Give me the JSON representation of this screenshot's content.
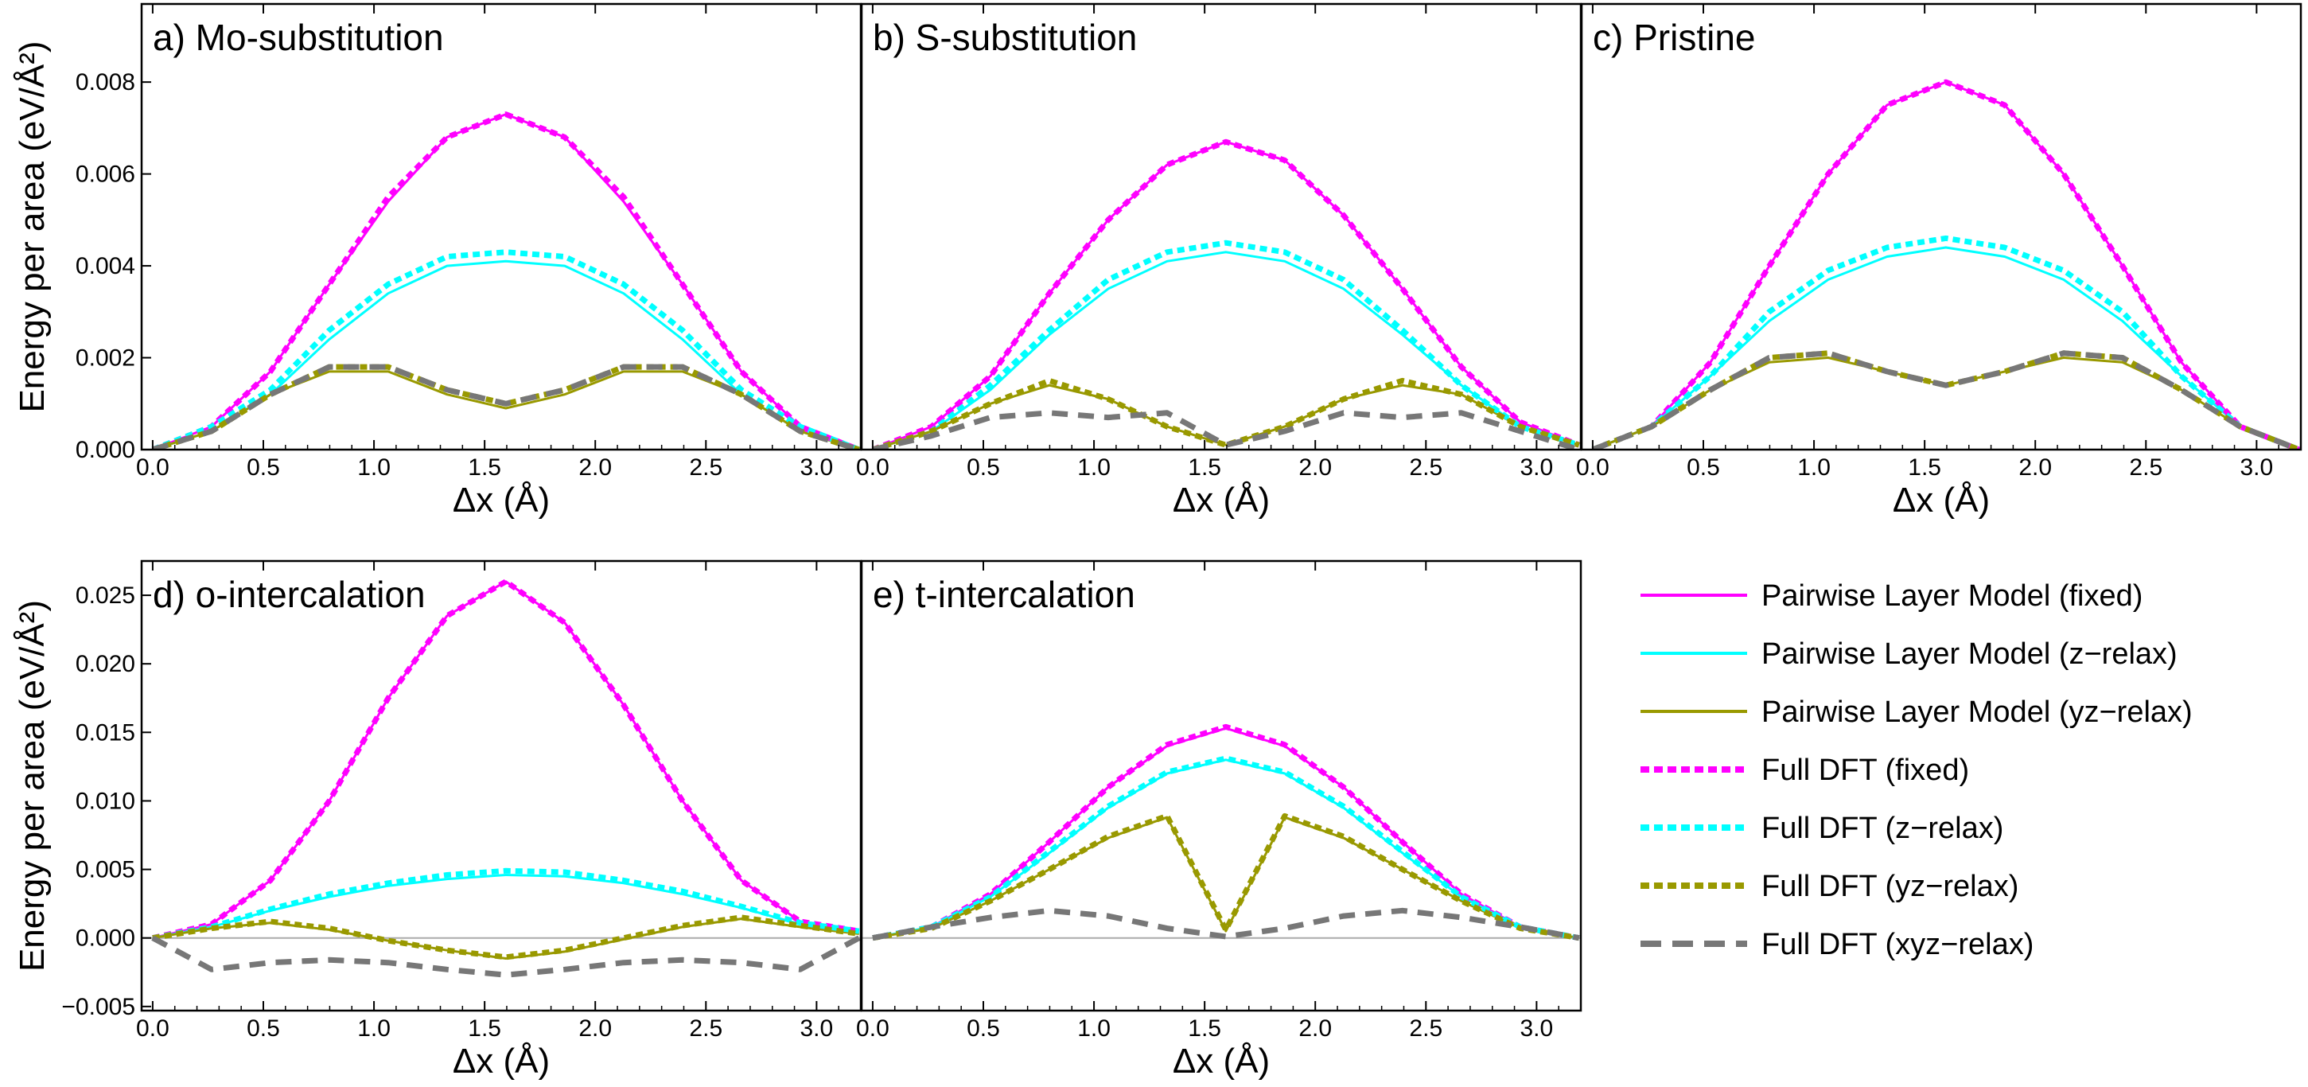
{
  "colors": {
    "fixed": "#ff00ff",
    "z_relax": "#00ffff",
    "yz_relax": "#999900",
    "xyz_relax": "#777777",
    "zero_line": "#aaaaaa",
    "frame": "#000000"
  },
  "legend": {
    "items": [
      {
        "label": "Pairwise Layer Model (fixed)",
        "color": "#ff00ff",
        "style": "solid"
      },
      {
        "label": "Pairwise Layer Model (z−relax)",
        "color": "#00ffff",
        "style": "solid"
      },
      {
        "label": "Pairwise Layer Model (yz−relax)",
        "color": "#999900",
        "style": "solid"
      },
      {
        "label": "Full DFT (fixed)",
        "color": "#ff00ff",
        "style": "dotted"
      },
      {
        "label": "Full DFT (z−relax)",
        "color": "#00ffff",
        "style": "dotted"
      },
      {
        "label": "Full DFT (yz−relax)",
        "color": "#999900",
        "style": "dotted"
      },
      {
        "label": "Full DFT (xyz−relax)",
        "color": "#777777",
        "style": "dashed"
      }
    ]
  },
  "chart_data": [
    {
      "panel": "a",
      "type": "line",
      "title": "a) Mo-substitution",
      "xlabel": "Δx (Å)",
      "ylabel": "Energy per area (eV/Å²)",
      "xlim": [
        -0.05,
        3.2
      ],
      "ylim": [
        0.0,
        0.0097
      ],
      "xticks": [
        0.0,
        0.5,
        1.0,
        1.5,
        2.0,
        2.5,
        3.0
      ],
      "xtick_labels": [
        "0.0",
        "0.5",
        "1.0",
        "1.5",
        "2.0",
        "2.5",
        "3.0"
      ],
      "yticks": [
        0.0,
        0.002,
        0.004,
        0.006,
        0.008
      ],
      "ytick_labels": [
        "0.000",
        "0.002",
        "0.004",
        "0.006",
        "0.008"
      ],
      "zero_line": false,
      "x": [
        0.0,
        0.266,
        0.532,
        0.798,
        1.064,
        1.33,
        1.596,
        1.862,
        2.128,
        2.394,
        2.66,
        2.926,
        3.192
      ],
      "series": [
        {
          "name": "Pairwise Layer Model (fixed)",
          "key": "fixed",
          "style": "solid",
          "values": [
            0.0,
            0.0005,
            0.0017,
            0.0036,
            0.0054,
            0.0068,
            0.0073,
            0.0068,
            0.0054,
            0.0036,
            0.0017,
            0.0005,
            0.0
          ]
        },
        {
          "name": "Pairwise Layer Model (z-relax)",
          "key": "z_relax",
          "style": "solid",
          "values": [
            0.0,
            0.0004,
            0.0012,
            0.0024,
            0.0034,
            0.004,
            0.0041,
            0.004,
            0.0034,
            0.0024,
            0.0012,
            0.0004,
            0.0
          ]
        },
        {
          "name": "Pairwise Layer Model (yz-relax)",
          "key": "yz_relax",
          "style": "solid",
          "values": [
            0.0,
            0.0004,
            0.0012,
            0.0017,
            0.0017,
            0.0012,
            0.0009,
            0.0012,
            0.0017,
            0.0017,
            0.0012,
            0.0004,
            0.0
          ]
        },
        {
          "name": "Full DFT (fixed)",
          "key": "fixed",
          "style": "dotted",
          "values": [
            0.0,
            0.0005,
            0.0017,
            0.0036,
            0.0055,
            0.0068,
            0.0073,
            0.0068,
            0.0055,
            0.0036,
            0.0017,
            0.0005,
            0.0
          ]
        },
        {
          "name": "Full DFT (z-relax)",
          "key": "z_relax",
          "style": "dotted",
          "values": [
            0.0,
            0.0005,
            0.0013,
            0.0026,
            0.0036,
            0.0042,
            0.0043,
            0.0042,
            0.0036,
            0.0026,
            0.0013,
            0.0005,
            0.0
          ]
        },
        {
          "name": "Full DFT (yz-relax)",
          "key": "yz_relax",
          "style": "dotted",
          "values": [
            0.0,
            0.0004,
            0.0012,
            0.0018,
            0.0018,
            0.0013,
            0.001,
            0.0013,
            0.0018,
            0.0018,
            0.0012,
            0.0004,
            0.0
          ]
        },
        {
          "name": "Full DFT (xyz-relax)",
          "key": "xyz_relax",
          "style": "dashed",
          "values": [
            0.0,
            0.0004,
            0.0012,
            0.0018,
            0.0018,
            0.0013,
            0.001,
            0.0013,
            0.0018,
            0.0018,
            0.0012,
            0.0004,
            0.0
          ]
        }
      ]
    },
    {
      "panel": "b",
      "type": "line",
      "title": "b) S-substitution",
      "xlabel": "Δx (Å)",
      "ylabel": "",
      "xlim": [
        -0.05,
        3.2
      ],
      "ylim": [
        0.0,
        0.0097
      ],
      "xticks": [
        0.0,
        0.5,
        1.0,
        1.5,
        2.0,
        2.5,
        3.0
      ],
      "xtick_labels": [
        "0.0",
        "0.5",
        "1.0",
        "1.5",
        "2.0",
        "2.5",
        "3.0"
      ],
      "yticks": [],
      "ytick_labels": [],
      "zero_line": false,
      "x": [
        0.0,
        0.266,
        0.532,
        0.798,
        1.064,
        1.33,
        1.596,
        1.862,
        2.128,
        2.394,
        2.66,
        2.926,
        3.192
      ],
      "series": [
        {
          "name": "Pairwise Layer Model (fixed)",
          "key": "fixed",
          "style": "solid",
          "values": [
            0.0,
            0.0005,
            0.0016,
            0.0034,
            0.005,
            0.0062,
            0.0067,
            0.0063,
            0.0051,
            0.0035,
            0.0018,
            0.0006,
            0.0001
          ]
        },
        {
          "name": "Pairwise Layer Model (z-relax)",
          "key": "z_relax",
          "style": "solid",
          "values": [
            0.0,
            0.0004,
            0.0013,
            0.0025,
            0.0035,
            0.0041,
            0.0043,
            0.0041,
            0.0035,
            0.0025,
            0.0014,
            0.0005,
            0.0001
          ]
        },
        {
          "name": "Pairwise Layer Model (yz-relax)",
          "key": "yz_relax",
          "style": "solid",
          "values": [
            0.0,
            0.0004,
            0.001,
            0.0014,
            0.0011,
            0.0005,
            0.0001,
            0.0005,
            0.0011,
            0.0014,
            0.0012,
            0.0005,
            0.0001
          ]
        },
        {
          "name": "Full DFT (fixed)",
          "key": "fixed",
          "style": "dotted",
          "values": [
            0.0,
            0.0005,
            0.0016,
            0.0034,
            0.005,
            0.0062,
            0.0067,
            0.0063,
            0.0051,
            0.0035,
            0.0018,
            0.0006,
            0.0001
          ]
        },
        {
          "name": "Full DFT (z-relax)",
          "key": "z_relax",
          "style": "dotted",
          "values": [
            0.0,
            0.0004,
            0.0014,
            0.0026,
            0.0037,
            0.0043,
            0.0045,
            0.0043,
            0.0037,
            0.0026,
            0.0014,
            0.0005,
            0.0001
          ]
        },
        {
          "name": "Full DFT (yz-relax)",
          "key": "yz_relax",
          "style": "dotted",
          "values": [
            0.0,
            0.0004,
            0.001,
            0.0015,
            0.0011,
            0.0005,
            0.0001,
            0.0005,
            0.0011,
            0.0015,
            0.0012,
            0.0005,
            0.0001
          ]
        },
        {
          "name": "Full DFT (xyz-relax)",
          "key": "xyz_relax",
          "style": "dashed",
          "values": [
            0.0,
            0.0003,
            0.0007,
            0.0008,
            0.0007,
            0.0008,
            0.0001,
            0.0004,
            0.0008,
            0.0007,
            0.0008,
            0.0004,
            0.0
          ]
        }
      ]
    },
    {
      "panel": "c",
      "type": "line",
      "title": "c) Pristine",
      "xlabel": "Δx (Å)",
      "ylabel": "",
      "xlim": [
        -0.05,
        3.2
      ],
      "ylim": [
        0.0,
        0.0097
      ],
      "xticks": [
        0.0,
        0.5,
        1.0,
        1.5,
        2.0,
        2.5,
        3.0
      ],
      "xtick_labels": [
        "0.0",
        "0.5",
        "1.0",
        "1.5",
        "2.0",
        "2.5",
        "3.0"
      ],
      "yticks": [],
      "ytick_labels": [],
      "zero_line": false,
      "x": [
        0.0,
        0.266,
        0.532,
        0.798,
        1.064,
        1.33,
        1.596,
        1.862,
        2.128,
        2.394,
        2.66,
        2.926,
        3.192
      ],
      "series": [
        {
          "name": "Pairwise Layer Model (fixed)",
          "key": "fixed",
          "style": "solid",
          "values": [
            0.0,
            0.0005,
            0.0019,
            0.004,
            0.006,
            0.0075,
            0.008,
            0.0075,
            0.006,
            0.004,
            0.0019,
            0.0005,
            0.0
          ]
        },
        {
          "name": "Pairwise Layer Model (z-relax)",
          "key": "z_relax",
          "style": "solid",
          "values": [
            0.0,
            0.0005,
            0.0016,
            0.0028,
            0.0037,
            0.0042,
            0.0044,
            0.0042,
            0.0037,
            0.0028,
            0.0016,
            0.0005,
            0.0
          ]
        },
        {
          "name": "Pairwise Layer Model (yz-relax)",
          "key": "yz_relax",
          "style": "solid",
          "values": [
            0.0,
            0.0005,
            0.0013,
            0.0019,
            0.002,
            0.0017,
            0.0014,
            0.0017,
            0.002,
            0.0019,
            0.0013,
            0.0005,
            0.0
          ]
        },
        {
          "name": "Full DFT (fixed)",
          "key": "fixed",
          "style": "dotted",
          "values": [
            0.0,
            0.0005,
            0.0019,
            0.004,
            0.006,
            0.0075,
            0.008,
            0.0075,
            0.006,
            0.004,
            0.0019,
            0.0005,
            0.0
          ]
        },
        {
          "name": "Full DFT (z-relax)",
          "key": "z_relax",
          "style": "dotted",
          "values": [
            0.0,
            0.0005,
            0.0016,
            0.003,
            0.0039,
            0.0044,
            0.0046,
            0.0044,
            0.0039,
            0.003,
            0.0016,
            0.0005,
            0.0
          ]
        },
        {
          "name": "Full DFT (yz-relax)",
          "key": "yz_relax",
          "style": "dotted",
          "values": [
            0.0,
            0.0005,
            0.0013,
            0.002,
            0.0021,
            0.0017,
            0.0014,
            0.0017,
            0.0021,
            0.002,
            0.0013,
            0.0005,
            0.0
          ]
        },
        {
          "name": "Full DFT (xyz-relax)",
          "key": "xyz_relax",
          "style": "dashed",
          "values": [
            0.0,
            0.0005,
            0.0013,
            0.002,
            0.0021,
            0.0017,
            0.0014,
            0.0017,
            0.0021,
            0.002,
            0.0013,
            0.0005,
            0.0
          ]
        }
      ]
    },
    {
      "panel": "d",
      "type": "line",
      "title": "d) o-intercalation",
      "xlabel": "Δx (Å)",
      "ylabel": "Energy per area (eV/Å²)",
      "xlim": [
        -0.05,
        3.2
      ],
      "ylim": [
        -0.0053,
        0.0275
      ],
      "xticks": [
        0.0,
        0.5,
        1.0,
        1.5,
        2.0,
        2.5,
        3.0
      ],
      "xtick_labels": [
        "0.0",
        "0.5",
        "1.0",
        "1.5",
        "2.0",
        "2.5",
        "3.0"
      ],
      "yticks": [
        -0.005,
        0.0,
        0.005,
        0.01,
        0.015,
        0.02,
        0.025
      ],
      "ytick_labels": [
        "−0.005",
        "0.000",
        "0.005",
        "0.010",
        "0.015",
        "0.020",
        "0.025"
      ],
      "zero_line": true,
      "x": [
        0.0,
        0.266,
        0.532,
        0.798,
        1.064,
        1.33,
        1.596,
        1.862,
        2.128,
        2.394,
        2.66,
        2.926,
        3.192
      ],
      "series": [
        {
          "name": "Pairwise Layer Model (fixed)",
          "key": "fixed",
          "style": "solid",
          "values": [
            0.0,
            0.001,
            0.0042,
            0.01,
            0.0175,
            0.0235,
            0.026,
            0.023,
            0.017,
            0.01,
            0.0042,
            0.0012,
            0.0005
          ]
        },
        {
          "name": "Pairwise Layer Model (z-relax)",
          "key": "z_relax",
          "style": "solid",
          "values": [
            0.0,
            0.0008,
            0.002,
            0.003,
            0.0038,
            0.0043,
            0.0046,
            0.0045,
            0.004,
            0.0032,
            0.0022,
            0.001,
            0.0005
          ]
        },
        {
          "name": "Pairwise Layer Model (yz-relax)",
          "key": "yz_relax",
          "style": "solid",
          "values": [
            0.0,
            0.0007,
            0.0011,
            0.0006,
            -0.0002,
            -0.0009,
            -0.0015,
            -0.001,
            -0.0001,
            0.0008,
            0.0014,
            0.0008,
            0.0003
          ]
        },
        {
          "name": "Full DFT (fixed)",
          "key": "fixed",
          "style": "dotted",
          "values": [
            0.0,
            0.001,
            0.0042,
            0.01,
            0.0175,
            0.0235,
            0.026,
            0.023,
            0.017,
            0.01,
            0.0042,
            0.0012,
            0.0005
          ]
        },
        {
          "name": "Full DFT (z-relax)",
          "key": "z_relax",
          "style": "dotted",
          "values": [
            0.0,
            0.0008,
            0.0021,
            0.0032,
            0.004,
            0.0046,
            0.0049,
            0.0048,
            0.0042,
            0.0034,
            0.0023,
            0.0011,
            0.0005
          ]
        },
        {
          "name": "Full DFT (yz-relax)",
          "key": "yz_relax",
          "style": "dotted",
          "values": [
            0.0,
            0.0007,
            0.0012,
            0.0007,
            -0.0002,
            -0.0009,
            -0.0014,
            -0.0009,
            0.0,
            0.0009,
            0.0015,
            0.0009,
            0.0003
          ]
        },
        {
          "name": "Full DFT (xyz-relax)",
          "key": "xyz_relax",
          "style": "dashed",
          "values": [
            0.0,
            -0.0023,
            -0.0018,
            -0.0016,
            -0.0018,
            -0.0023,
            -0.0027,
            -0.0023,
            -0.0018,
            -0.0016,
            -0.0018,
            -0.0023,
            0.0
          ]
        }
      ]
    },
    {
      "panel": "e",
      "type": "line",
      "title": "e) t-intercalation",
      "xlabel": "Δx (Å)",
      "ylabel": "",
      "xlim": [
        -0.05,
        3.2
      ],
      "ylim": [
        -0.0053,
        0.0275
      ],
      "xticks": [
        0.0,
        0.5,
        1.0,
        1.5,
        2.0,
        2.5,
        3.0
      ],
      "xtick_labels": [
        "0.0",
        "0.5",
        "1.0",
        "1.5",
        "2.0",
        "2.5",
        "3.0"
      ],
      "yticks": [],
      "ytick_labels": [],
      "zero_line": true,
      "x": [
        0.0,
        0.266,
        0.532,
        0.798,
        1.064,
        1.33,
        1.596,
        1.862,
        2.128,
        2.394,
        2.66,
        2.926,
        3.192
      ],
      "series": [
        {
          "name": "Pairwise Layer Model (fixed)",
          "key": "fixed",
          "style": "solid",
          "values": [
            0.0,
            0.0008,
            0.0032,
            0.007,
            0.011,
            0.014,
            0.0153,
            0.014,
            0.011,
            0.007,
            0.0032,
            0.0008,
            0.0
          ]
        },
        {
          "name": "Pairwise Layer Model (z-relax)",
          "key": "z_relax",
          "style": "solid",
          "values": [
            0.0,
            0.0008,
            0.003,
            0.0062,
            0.0095,
            0.012,
            0.013,
            0.012,
            0.0095,
            0.0062,
            0.003,
            0.0008,
            0.0
          ]
        },
        {
          "name": "Pairwise Layer Model (yz-relax)",
          "key": "yz_relax",
          "style": "solid",
          "values": [
            0.0,
            0.0007,
            0.0027,
            0.005,
            0.0073,
            0.0088,
            0.0005,
            0.0088,
            0.0073,
            0.005,
            0.0027,
            0.0007,
            0.0
          ]
        },
        {
          "name": "Full DFT (fixed)",
          "key": "fixed",
          "style": "dotted",
          "values": [
            0.0,
            0.0008,
            0.0032,
            0.007,
            0.011,
            0.0141,
            0.0154,
            0.0141,
            0.011,
            0.007,
            0.0032,
            0.0008,
            0.0
          ]
        },
        {
          "name": "Full DFT (z-relax)",
          "key": "z_relax",
          "style": "dotted",
          "values": [
            0.0,
            0.0008,
            0.003,
            0.0063,
            0.0096,
            0.0121,
            0.0131,
            0.0121,
            0.0096,
            0.0063,
            0.003,
            0.0008,
            0.0
          ]
        },
        {
          "name": "Full DFT (yz-relax)",
          "key": "yz_relax",
          "style": "dotted",
          "values": [
            0.0,
            0.0007,
            0.0027,
            0.005,
            0.0074,
            0.0089,
            0.0006,
            0.0089,
            0.0074,
            0.005,
            0.0027,
            0.0007,
            0.0
          ]
        },
        {
          "name": "Full DFT (xyz-relax)",
          "key": "xyz_relax",
          "style": "dashed",
          "values": [
            0.0,
            0.0008,
            0.0015,
            0.002,
            0.0016,
            0.0007,
            0.0001,
            0.0007,
            0.0016,
            0.002,
            0.0015,
            0.0008,
            0.0
          ]
        }
      ]
    }
  ]
}
